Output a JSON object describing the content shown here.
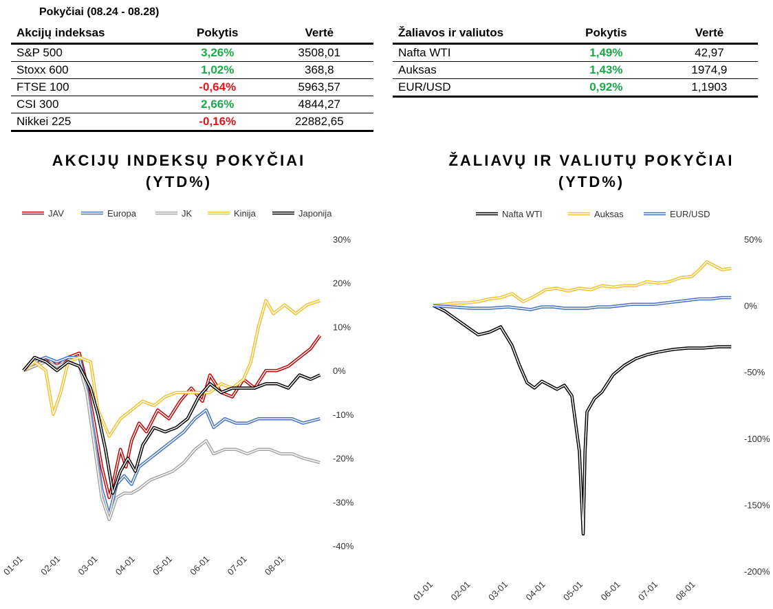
{
  "header": {
    "period": "Pokyčiai (08.24 - 08.28)"
  },
  "equity_table": {
    "columns": [
      "Akcijų indeksas",
      "Pokytis",
      "Vertė"
    ],
    "rows": [
      {
        "name": "S&P 500",
        "change": "3,26%",
        "value": "3508,01",
        "dir": "pos"
      },
      {
        "name": "Stoxx 600",
        "change": "1,02%",
        "value": "368,8",
        "dir": "pos"
      },
      {
        "name": "FTSE 100",
        "change": "-0,64%",
        "value": "5963,57",
        "dir": "neg"
      },
      {
        "name": "CSI 300",
        "change": "2,66%",
        "value": "4844,27",
        "dir": "pos"
      },
      {
        "name": "Nikkei 225",
        "change": "-0,16%",
        "value": "22882,65",
        "dir": "neg"
      }
    ]
  },
  "commodity_table": {
    "columns": [
      "Žaliavos ir valiutos",
      "Pokytis",
      "Vertė"
    ],
    "rows": [
      {
        "name": "Nafta WTI",
        "change": "1,49%",
        "value": "42,97",
        "dir": "pos"
      },
      {
        "name": "Auksas",
        "change": "1,43%",
        "value": "1974,9",
        "dir": "pos"
      },
      {
        "name": "EUR/USD",
        "change": "0,92%",
        "value": "1,1903",
        "dir": "pos"
      }
    ]
  },
  "colors": {
    "JAV": "#c00000",
    "Europa": "#4472c4",
    "JK": "#a5a5a5",
    "Kinija": "#f2c12e",
    "Japonija": "#000000",
    "Nafta WTI": "#000000",
    "Auksas": "#f2c12e",
    "EUR/USD": "#4472c4",
    "positive": "#1aaa48",
    "negative": "#e0161b"
  },
  "chart_data": [
    {
      "type": "line",
      "title": "AKCIJŲ INDEKSŲ POKYČIAI",
      "subtitle": "(YTD%)",
      "legend_position": "top",
      "grid": false,
      "y_axis_side": "right",
      "ylim": [
        -40,
        30
      ],
      "y_ticks": [
        30,
        20,
        10,
        0,
        -10,
        -20,
        -30,
        -40
      ],
      "y_tick_labels": [
        "30%",
        "20%",
        "10%",
        "0%",
        "-10%",
        "-20%",
        "-30%",
        "-40%"
      ],
      "x_ticks": [
        "01-01",
        "02-01",
        "03-01",
        "04-01",
        "05-01",
        "06-01",
        "07-01",
        "08-01"
      ],
      "xlim": [
        0,
        8
      ],
      "series": [
        {
          "name": "JAV",
          "x": [
            0,
            0.3,
            0.6,
            0.9,
            1.2,
            1.5,
            1.7,
            1.9,
            2.1,
            2.3,
            2.45,
            2.6,
            2.75,
            2.9,
            3.1,
            3.3,
            3.6,
            3.9,
            4.2,
            4.5,
            4.8,
            5.0,
            5.3,
            5.6,
            5.9,
            6.2,
            6.5,
            6.8,
            7.1,
            7.4,
            7.7,
            7.95
          ],
          "y": [
            0,
            1,
            3,
            1,
            3,
            4,
            -3,
            -12,
            -22,
            -29,
            -24,
            -18,
            -22,
            -16,
            -12,
            -14,
            -9,
            -11,
            -7,
            -4,
            -7,
            -1,
            -5,
            -6,
            -2,
            -4,
            0,
            0,
            1,
            3,
            5,
            8
          ]
        },
        {
          "name": "Europa",
          "x": [
            0,
            0.3,
            0.6,
            0.9,
            1.2,
            1.5,
            1.7,
            1.9,
            2.1,
            2.3,
            2.5,
            2.7,
            2.9,
            3.1,
            3.4,
            3.7,
            4.0,
            4.3,
            4.6,
            4.9,
            5.1,
            5.4,
            5.7,
            6.0,
            6.3,
            6.6,
            6.9,
            7.2,
            7.5,
            7.95
          ],
          "y": [
            0,
            2,
            3,
            2,
            3,
            3,
            -4,
            -15,
            -27,
            -33,
            -26,
            -24,
            -26,
            -22,
            -20,
            -18,
            -16,
            -14,
            -11,
            -9,
            -13,
            -11,
            -12,
            -12,
            -11,
            -11,
            -11,
            -11,
            -12,
            -11
          ]
        },
        {
          "name": "JK",
          "x": [
            0,
            0.3,
            0.6,
            0.9,
            1.2,
            1.5,
            1.7,
            1.9,
            2.1,
            2.3,
            2.5,
            2.7,
            2.9,
            3.1,
            3.4,
            3.7,
            4.0,
            4.3,
            4.6,
            4.9,
            5.1,
            5.4,
            5.7,
            6.0,
            6.3,
            6.6,
            6.9,
            7.2,
            7.5,
            7.95
          ],
          "y": [
            0,
            1,
            2,
            1,
            2,
            1,
            -5,
            -17,
            -29,
            -34,
            -29,
            -28,
            -28,
            -27,
            -25,
            -24,
            -23,
            -21,
            -18,
            -16,
            -19,
            -18,
            -18,
            -19,
            -18,
            -18,
            -19,
            -19,
            -20,
            -21
          ]
        },
        {
          "name": "Kinija",
          "x": [
            0,
            0.3,
            0.6,
            0.8,
            1.0,
            1.2,
            1.5,
            1.8,
            2.0,
            2.3,
            2.6,
            2.9,
            3.2,
            3.5,
            3.8,
            4.1,
            4.4,
            4.7,
            5.0,
            5.3,
            5.6,
            5.9,
            6.1,
            6.3,
            6.5,
            6.7,
            7.0,
            7.3,
            7.6,
            7.95
          ],
          "y": [
            0,
            2,
            0,
            -10,
            -5,
            2,
            3,
            2,
            -9,
            -15,
            -11,
            -9,
            -7,
            -8,
            -6,
            -5,
            -5,
            -5,
            -5,
            -3,
            -4,
            -2,
            2,
            10,
            16,
            13,
            15,
            13,
            15,
            16
          ]
        },
        {
          "name": "Japonija",
          "x": [
            0,
            0.3,
            0.6,
            0.9,
            1.2,
            1.5,
            1.8,
            2.0,
            2.2,
            2.4,
            2.6,
            2.8,
            3.0,
            3.2,
            3.5,
            3.8,
            4.1,
            4.4,
            4.7,
            5.0,
            5.3,
            5.6,
            5.9,
            6.2,
            6.5,
            6.8,
            7.1,
            7.4,
            7.7,
            7.95
          ],
          "y": [
            0,
            3,
            2,
            0,
            2,
            1,
            -4,
            -10,
            -18,
            -28,
            -23,
            -20,
            -23,
            -17,
            -13,
            -14,
            -13,
            -11,
            -6,
            -3,
            -5,
            -4,
            -4,
            -4,
            -3,
            -3,
            -4,
            -1,
            -2,
            -1
          ]
        }
      ]
    },
    {
      "type": "line",
      "title": "ŽALIAVŲ IR VALIUTŲ POKYČIAI",
      "subtitle": "(YTD%)",
      "legend_position": "top",
      "grid": false,
      "y_axis_side": "right",
      "ylim": [
        -200,
        50
      ],
      "y_ticks": [
        50,
        0,
        -50,
        -100,
        -150,
        -200
      ],
      "y_tick_labels": [
        "50%",
        "0%",
        "-50%",
        "-100%",
        "-150%",
        "-200%"
      ],
      "x_ticks": [
        "01-01",
        "02-01",
        "03-01",
        "04-01",
        "05-01",
        "06-01",
        "07-01",
        "08-01"
      ],
      "xlim": [
        0,
        8
      ],
      "series": [
        {
          "name": "Nafta WTI",
          "x": [
            0,
            0.3,
            0.6,
            0.9,
            1.2,
            1.5,
            1.8,
            2.1,
            2.3,
            2.5,
            2.7,
            2.9,
            3.1,
            3.3,
            3.5,
            3.7,
            3.9,
            4.0,
            4.05,
            4.1,
            4.3,
            4.5,
            4.8,
            5.1,
            5.4,
            5.7,
            6.0,
            6.4,
            6.8,
            7.2,
            7.6,
            7.95
          ],
          "y": [
            0,
            -4,
            -10,
            -16,
            -22,
            -20,
            -16,
            -30,
            -45,
            -58,
            -62,
            -57,
            -60,
            -63,
            -60,
            -68,
            -110,
            -172,
            -110,
            -80,
            -70,
            -65,
            -52,
            -45,
            -40,
            -37,
            -35,
            -33,
            -32,
            -32,
            -31,
            -31
          ]
        },
        {
          "name": "Auksas",
          "x": [
            0,
            0.3,
            0.6,
            0.9,
            1.2,
            1.5,
            1.8,
            2.1,
            2.4,
            2.7,
            3.0,
            3.3,
            3.6,
            3.9,
            4.2,
            4.5,
            4.8,
            5.1,
            5.4,
            5.7,
            6.0,
            6.3,
            6.6,
            6.9,
            7.1,
            7.3,
            7.5,
            7.7,
            7.95
          ],
          "y": [
            0,
            1,
            2,
            2,
            3,
            5,
            6,
            9,
            3,
            7,
            12,
            13,
            11,
            13,
            12,
            15,
            14,
            15,
            15,
            18,
            17,
            18,
            21,
            22,
            27,
            33,
            30,
            27,
            28
          ]
        },
        {
          "name": "EUR/USD",
          "x": [
            0,
            0.5,
            1.0,
            1.5,
            2.0,
            2.3,
            2.6,
            2.9,
            3.2,
            3.5,
            3.8,
            4.1,
            4.4,
            4.7,
            5.0,
            5.3,
            5.6,
            5.9,
            6.2,
            6.5,
            6.8,
            7.1,
            7.4,
            7.7,
            7.95
          ],
          "y": [
            0,
            -1,
            -2,
            -2,
            -1,
            -2,
            -3,
            -1,
            -1,
            -2,
            -2,
            -2,
            -1,
            -1,
            0,
            1,
            1,
            1,
            2,
            3,
            4,
            5,
            5,
            6,
            6
          ]
        }
      ]
    }
  ]
}
